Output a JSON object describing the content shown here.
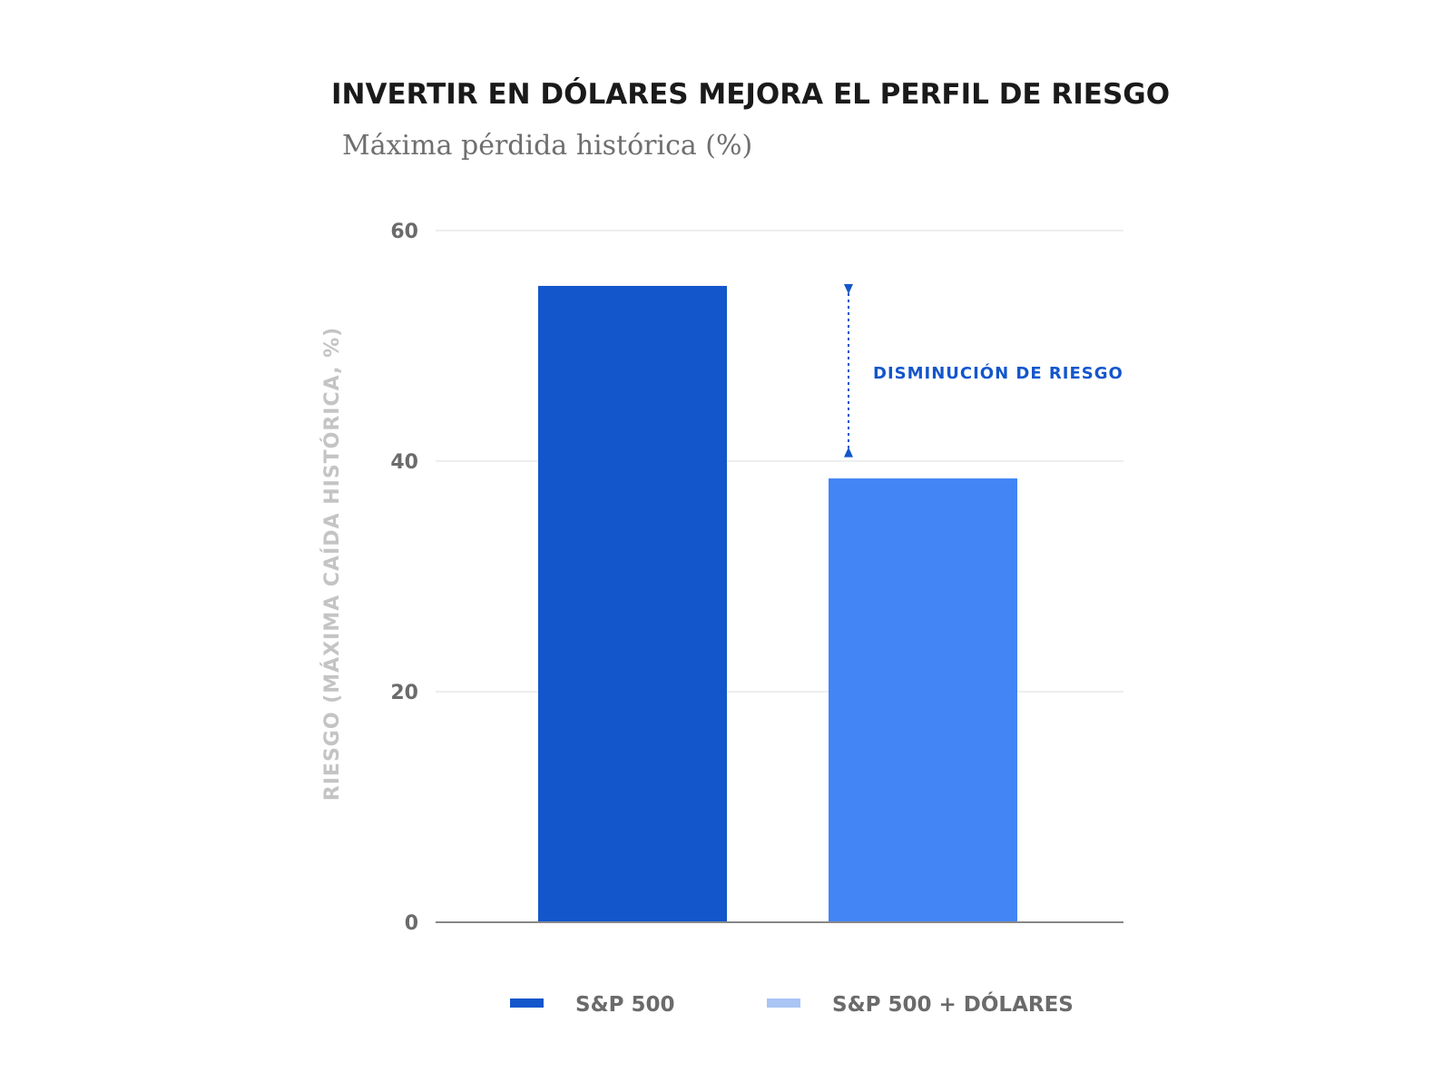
{
  "chart_data": {
    "type": "bar",
    "title": "INVERTIR EN DÓLARES MEJORA EL PERFIL DE RIESGO",
    "subtitle": "Máxima pérdida histórica (%)",
    "ylabel": "RIESGO (MÁXIMA CAÍDA HISTÓRICA, %)",
    "xlabel": "",
    "ylim": [
      0,
      60
    ],
    "yticks": [
      0,
      20,
      40,
      60
    ],
    "grid": true,
    "legend_position": "bottom",
    "series": [
      {
        "name": "S&P 500",
        "value": 55.2,
        "color": "#1356cc",
        "legend_color": "#1356cc"
      },
      {
        "name": "S&P 500 + DÓLARES",
        "value": 38.5,
        "color": "#4385f5",
        "legend_color": "#a9c4f5"
      }
    ],
    "annotation": {
      "text": "DISMINUCIÓN DE RIESGO",
      "from_value": 55.2,
      "to_value": 40.5,
      "color": "#1356cc"
    },
    "colors": {
      "grid": "#dddddd",
      "axis": "#888888"
    }
  }
}
